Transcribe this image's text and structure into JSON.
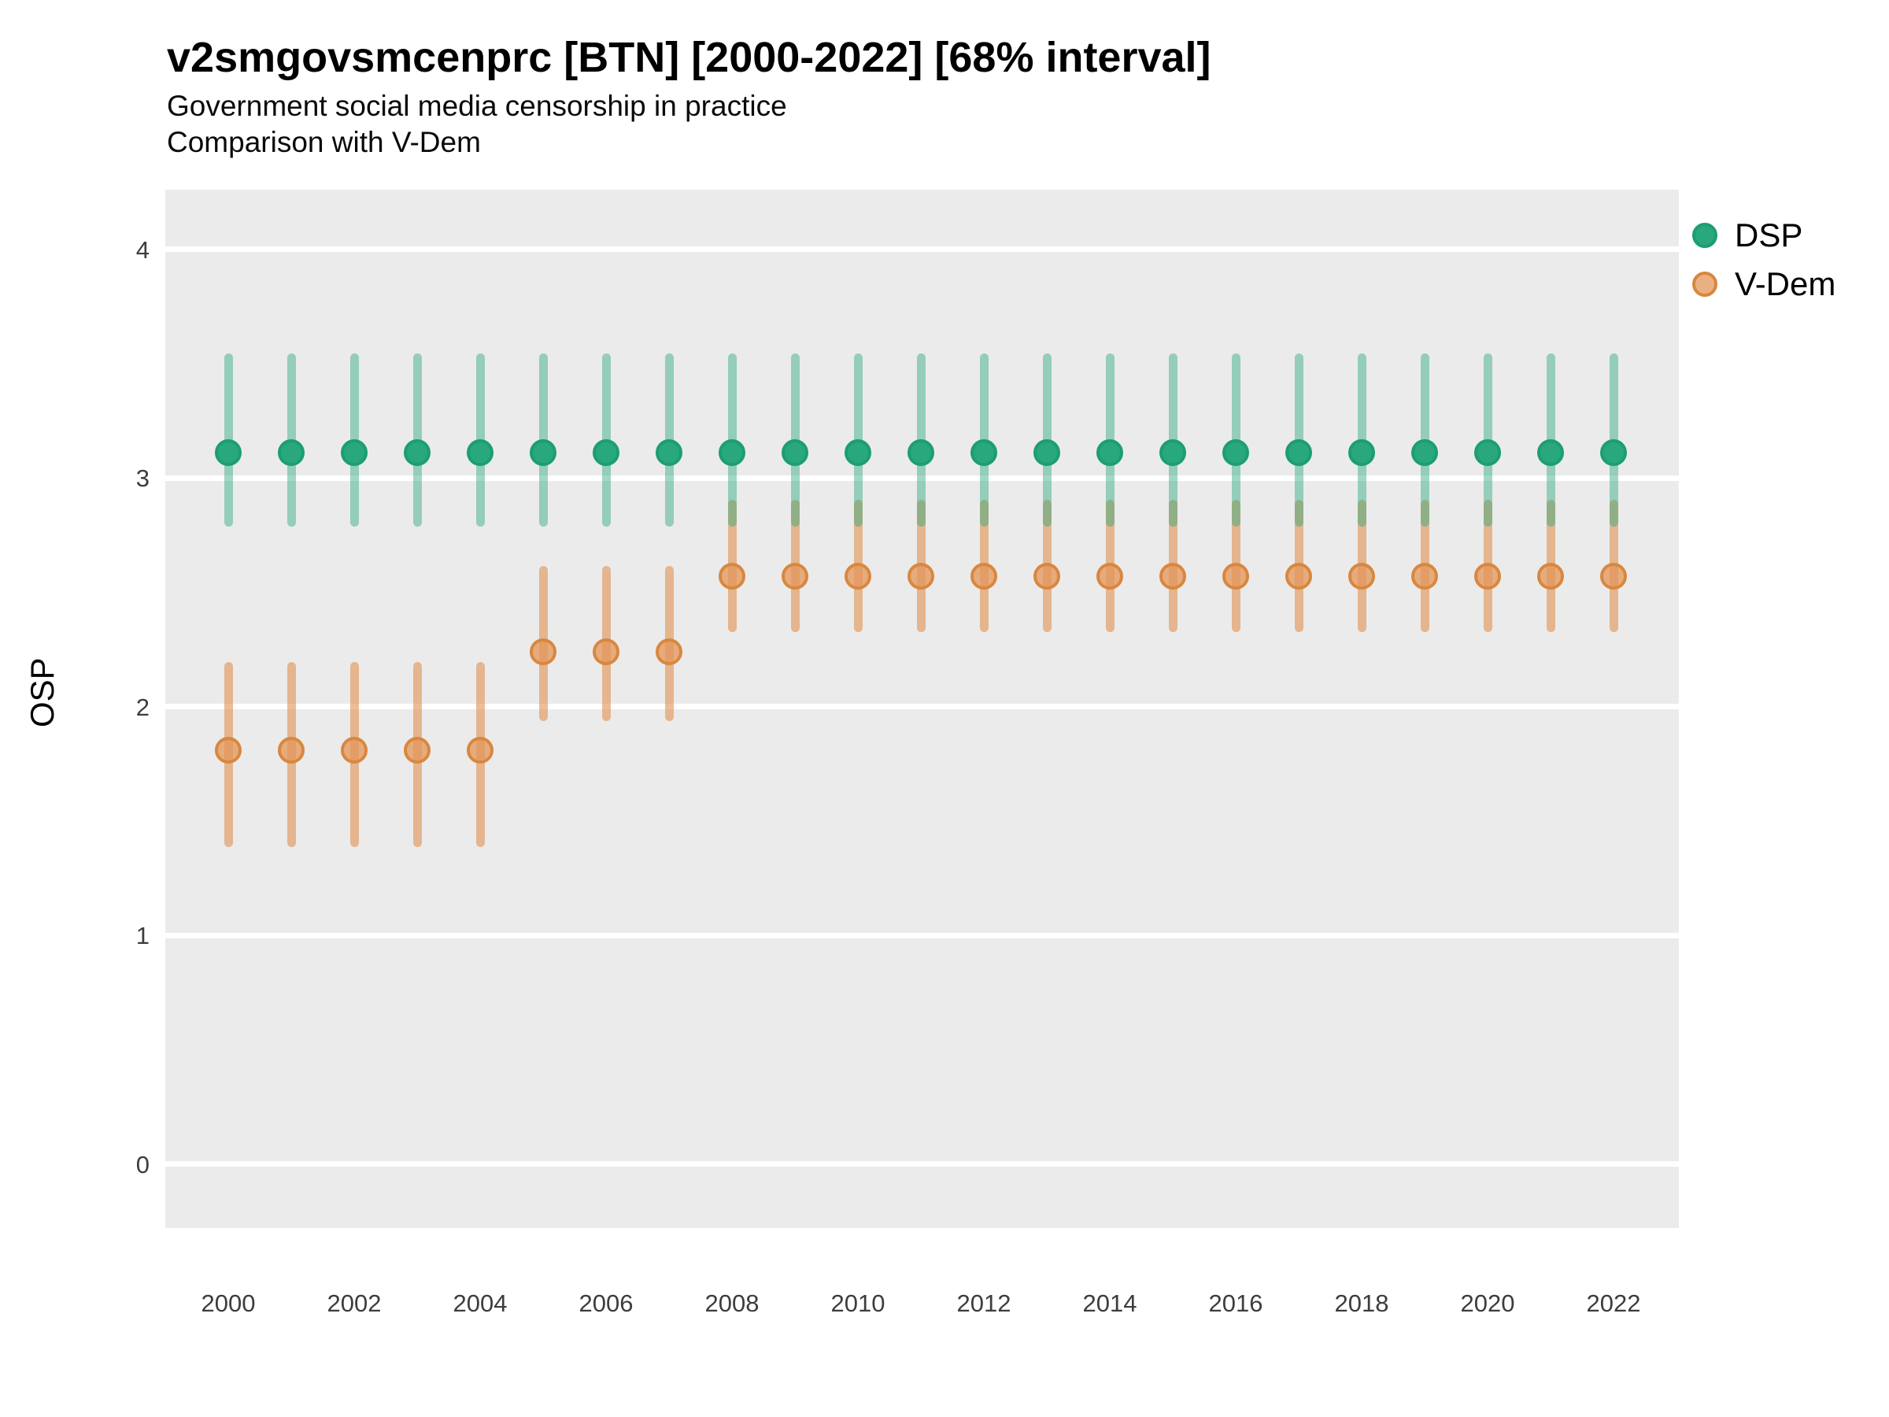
{
  "header": {
    "title": "v2smgovsmcenprc [BTN] [2000-2022] [68% interval]",
    "subtitle1": "Government social media censorship in practice",
    "subtitle2": "Comparison with V-Dem"
  },
  "colors": {
    "panel_background": "#EBEBEB",
    "gridline": "#FFFFFF",
    "dsp_point_fill": "#2AA87D",
    "dsp_point_stroke": "#1C9E70",
    "dsp_interval_line": "rgba(42,168,125,0.45)",
    "vdem_point_fill": "rgba(228,150,88,0.75)",
    "vdem_point_stroke": "#D9873F",
    "vdem_interval_line": "rgba(224,148,85,0.62)",
    "tick_text": "#3D3D3D"
  },
  "chart_data": {
    "type": "pointrange",
    "title": "v2smgovsmcenprc [BTN] [2000-2022] [68% interval]",
    "subtitle": [
      "Government social media censorship in practice",
      "Comparison with V-Dem"
    ],
    "xlabel": "",
    "ylabel": "OSP",
    "ylim": [
      -0.28,
      4.26
    ],
    "yticks": [
      4,
      3,
      2,
      1,
      0
    ],
    "xtick_labels": [
      "2000",
      "2002",
      "2004",
      "2006",
      "2008",
      "2010",
      "2012",
      "2014",
      "2016",
      "2018",
      "2020",
      "2022"
    ],
    "xtick_years": [
      2000,
      2002,
      2004,
      2006,
      2008,
      2010,
      2012,
      2014,
      2016,
      2018,
      2020,
      2022
    ],
    "grid": "major-horizontal-only",
    "legend_position": "right-top",
    "interval_level": "68%",
    "legend": [
      {
        "label": "DSP"
      },
      {
        "label": "V-Dem"
      }
    ],
    "series": [
      {
        "name": "DSP",
        "values": [
          {
            "year": 2000,
            "y": 3.11,
            "lo": 2.8,
            "hi": 3.53
          },
          {
            "year": 2001,
            "y": 3.11,
            "lo": 2.8,
            "hi": 3.53
          },
          {
            "year": 2002,
            "y": 3.11,
            "lo": 2.8,
            "hi": 3.53
          },
          {
            "year": 2003,
            "y": 3.11,
            "lo": 2.8,
            "hi": 3.53
          },
          {
            "year": 2004,
            "y": 3.11,
            "lo": 2.8,
            "hi": 3.53
          },
          {
            "year": 2005,
            "y": 3.11,
            "lo": 2.8,
            "hi": 3.53
          },
          {
            "year": 2006,
            "y": 3.11,
            "lo": 2.8,
            "hi": 3.53
          },
          {
            "year": 2007,
            "y": 3.11,
            "lo": 2.8,
            "hi": 3.53
          },
          {
            "year": 2008,
            "y": 3.11,
            "lo": 2.8,
            "hi": 3.53
          },
          {
            "year": 2009,
            "y": 3.11,
            "lo": 2.8,
            "hi": 3.53
          },
          {
            "year": 2010,
            "y": 3.11,
            "lo": 2.8,
            "hi": 3.53
          },
          {
            "year": 2011,
            "y": 3.11,
            "lo": 2.8,
            "hi": 3.53
          },
          {
            "year": 2012,
            "y": 3.11,
            "lo": 2.8,
            "hi": 3.53
          },
          {
            "year": 2013,
            "y": 3.11,
            "lo": 2.8,
            "hi": 3.53
          },
          {
            "year": 2014,
            "y": 3.11,
            "lo": 2.8,
            "hi": 3.53
          },
          {
            "year": 2015,
            "y": 3.11,
            "lo": 2.8,
            "hi": 3.53
          },
          {
            "year": 2016,
            "y": 3.11,
            "lo": 2.8,
            "hi": 3.53
          },
          {
            "year": 2017,
            "y": 3.11,
            "lo": 2.8,
            "hi": 3.53
          },
          {
            "year": 2018,
            "y": 3.11,
            "lo": 2.8,
            "hi": 3.53
          },
          {
            "year": 2019,
            "y": 3.11,
            "lo": 2.8,
            "hi": 3.53
          },
          {
            "year": 2020,
            "y": 3.11,
            "lo": 2.8,
            "hi": 3.53
          },
          {
            "year": 2021,
            "y": 3.11,
            "lo": 2.8,
            "hi": 3.53
          },
          {
            "year": 2022,
            "y": 3.11,
            "lo": 2.8,
            "hi": 3.53
          }
        ]
      },
      {
        "name": "V-Dem",
        "values": [
          {
            "year": 2000,
            "y": 1.81,
            "lo": 1.4,
            "hi": 2.18
          },
          {
            "year": 2001,
            "y": 1.81,
            "lo": 1.4,
            "hi": 2.18
          },
          {
            "year": 2002,
            "y": 1.81,
            "lo": 1.4,
            "hi": 2.18
          },
          {
            "year": 2003,
            "y": 1.81,
            "lo": 1.4,
            "hi": 2.18
          },
          {
            "year": 2004,
            "y": 1.81,
            "lo": 1.4,
            "hi": 2.18
          },
          {
            "year": 2005,
            "y": 2.24,
            "lo": 1.95,
            "hi": 2.6
          },
          {
            "year": 2006,
            "y": 2.24,
            "lo": 1.95,
            "hi": 2.6
          },
          {
            "year": 2007,
            "y": 2.24,
            "lo": 1.95,
            "hi": 2.6
          },
          {
            "year": 2008,
            "y": 2.57,
            "lo": 2.34,
            "hi": 2.89
          },
          {
            "year": 2009,
            "y": 2.57,
            "lo": 2.34,
            "hi": 2.89
          },
          {
            "year": 2010,
            "y": 2.57,
            "lo": 2.34,
            "hi": 2.89
          },
          {
            "year": 2011,
            "y": 2.57,
            "lo": 2.34,
            "hi": 2.89
          },
          {
            "year": 2012,
            "y": 2.57,
            "lo": 2.34,
            "hi": 2.89
          },
          {
            "year": 2013,
            "y": 2.57,
            "lo": 2.34,
            "hi": 2.89
          },
          {
            "year": 2014,
            "y": 2.57,
            "lo": 2.34,
            "hi": 2.89
          },
          {
            "year": 2015,
            "y": 2.57,
            "lo": 2.34,
            "hi": 2.89
          },
          {
            "year": 2016,
            "y": 2.57,
            "lo": 2.34,
            "hi": 2.89
          },
          {
            "year": 2017,
            "y": 2.57,
            "lo": 2.34,
            "hi": 2.89
          },
          {
            "year": 2018,
            "y": 2.57,
            "lo": 2.34,
            "hi": 2.89
          },
          {
            "year": 2019,
            "y": 2.57,
            "lo": 2.34,
            "hi": 2.89
          },
          {
            "year": 2020,
            "y": 2.57,
            "lo": 2.34,
            "hi": 2.89
          },
          {
            "year": 2021,
            "y": 2.57,
            "lo": 2.34,
            "hi": 2.89
          },
          {
            "year": 2022,
            "y": 2.57,
            "lo": 2.34,
            "hi": 2.89
          }
        ]
      }
    ]
  }
}
